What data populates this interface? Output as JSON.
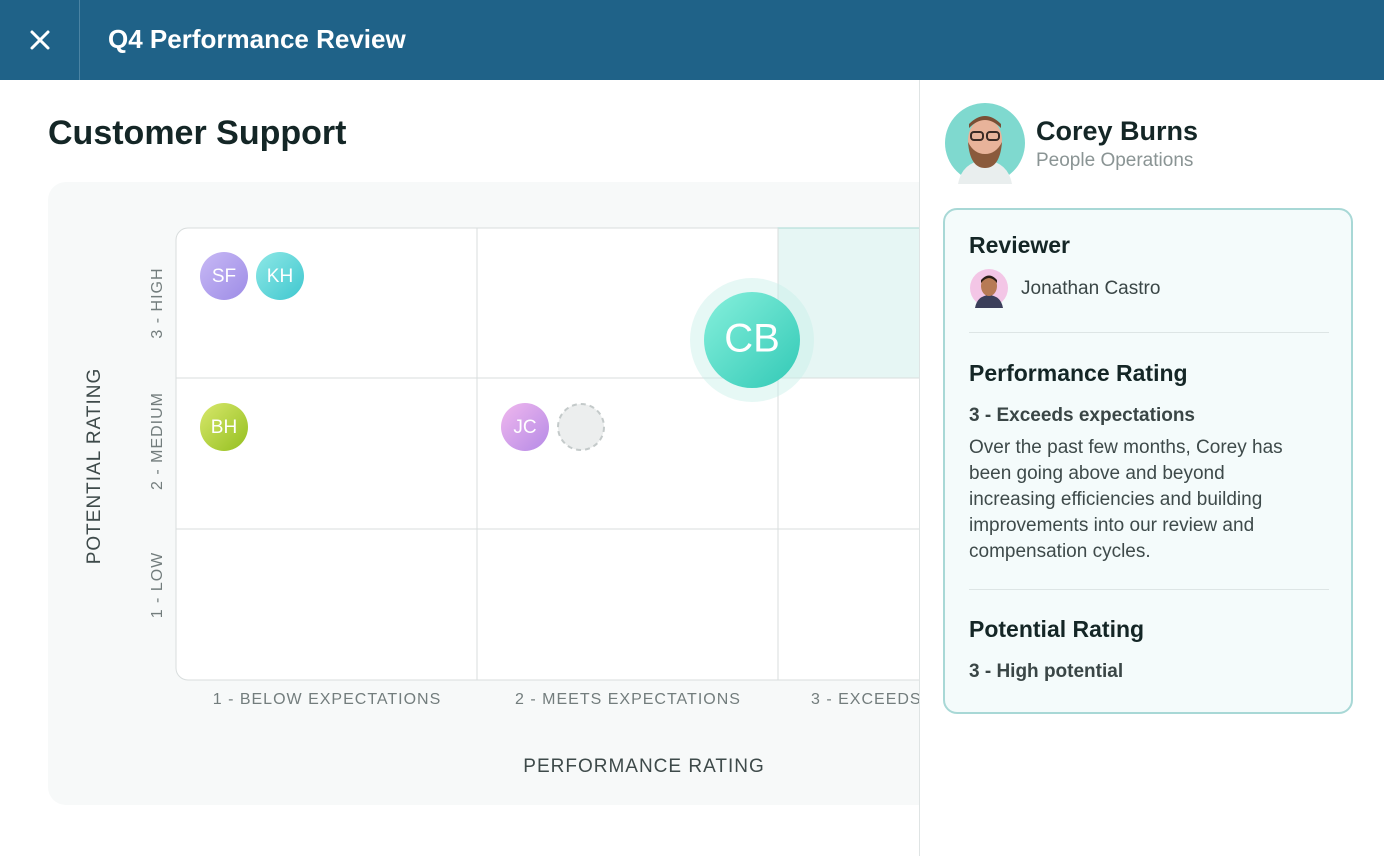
{
  "header": {
    "title": "Q4 Performance Review"
  },
  "section_title": "Customer Support",
  "grid": {
    "y_axis_label": "POTENTIAL RATING",
    "x_axis_label": "PERFORMANCE RATING",
    "rows": [
      "3 - HIGH",
      "2 - MEDIUM",
      "1 - LOW"
    ],
    "columns": [
      "1 - BELOW EXPECTATIONS",
      "2 - MEETS EXPECTATIONS",
      "3 - EXCEEDS"
    ],
    "avatars": [
      {
        "initials": "SF"
      },
      {
        "initials": "KH"
      },
      {
        "initials": "BH"
      },
      {
        "initials": "JC"
      },
      {
        "initials": "CB"
      }
    ]
  },
  "panel": {
    "name": "Corey Burns",
    "department": "People Operations",
    "reviewer_heading": "Reviewer",
    "reviewer_name": "Jonathan Castro",
    "performance_heading": "Performance Rating",
    "performance_rating": "3 - Exceeds expectations",
    "performance_comment": "Over the past few months, Corey has been going above and beyond increasing efficiencies and building improvements into our review and compensation cycles.",
    "potential_heading": "Potential Rating",
    "potential_rating": "3 - High potential"
  }
}
